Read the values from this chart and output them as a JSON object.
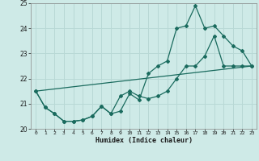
{
  "xlabel": "Humidex (Indice chaleur)",
  "bg_color": "#ceeae7",
  "grid_color": "#b8d8d5",
  "line_color": "#1a6b5e",
  "xlim": [
    -0.5,
    23.5
  ],
  "ylim": [
    20,
    25
  ],
  "xticks": [
    0,
    1,
    2,
    3,
    4,
    5,
    6,
    7,
    8,
    9,
    10,
    11,
    12,
    13,
    14,
    15,
    16,
    17,
    18,
    19,
    20,
    21,
    22,
    23
  ],
  "yticks": [
    20,
    21,
    22,
    23,
    24,
    25
  ],
  "line1_x": [
    0,
    1,
    2,
    3,
    4,
    5,
    6,
    7,
    8,
    9,
    10,
    11,
    12,
    13,
    14,
    15,
    16,
    17,
    18,
    19,
    20,
    21,
    22,
    23
  ],
  "line1_y": [
    21.5,
    20.85,
    20.6,
    20.3,
    20.3,
    20.35,
    20.5,
    20.9,
    20.6,
    20.7,
    21.4,
    21.15,
    22.2,
    22.5,
    22.7,
    24.0,
    24.1,
    24.9,
    24.0,
    24.1,
    23.7,
    23.3,
    23.1,
    22.5
  ],
  "line2_x": [
    0,
    1,
    2,
    3,
    4,
    5,
    6,
    7,
    8,
    9,
    10,
    11,
    12,
    13,
    14,
    15,
    16,
    17,
    18,
    19,
    20,
    21,
    22,
    23
  ],
  "line2_y": [
    21.5,
    20.85,
    20.6,
    20.3,
    20.3,
    20.35,
    20.5,
    20.9,
    20.6,
    21.3,
    21.5,
    21.3,
    21.2,
    21.3,
    21.5,
    22.0,
    22.5,
    22.5,
    22.9,
    23.7,
    22.5,
    22.5,
    22.5,
    22.5
  ],
  "line3_x": [
    0,
    23
  ],
  "line3_y": [
    21.5,
    22.5
  ]
}
